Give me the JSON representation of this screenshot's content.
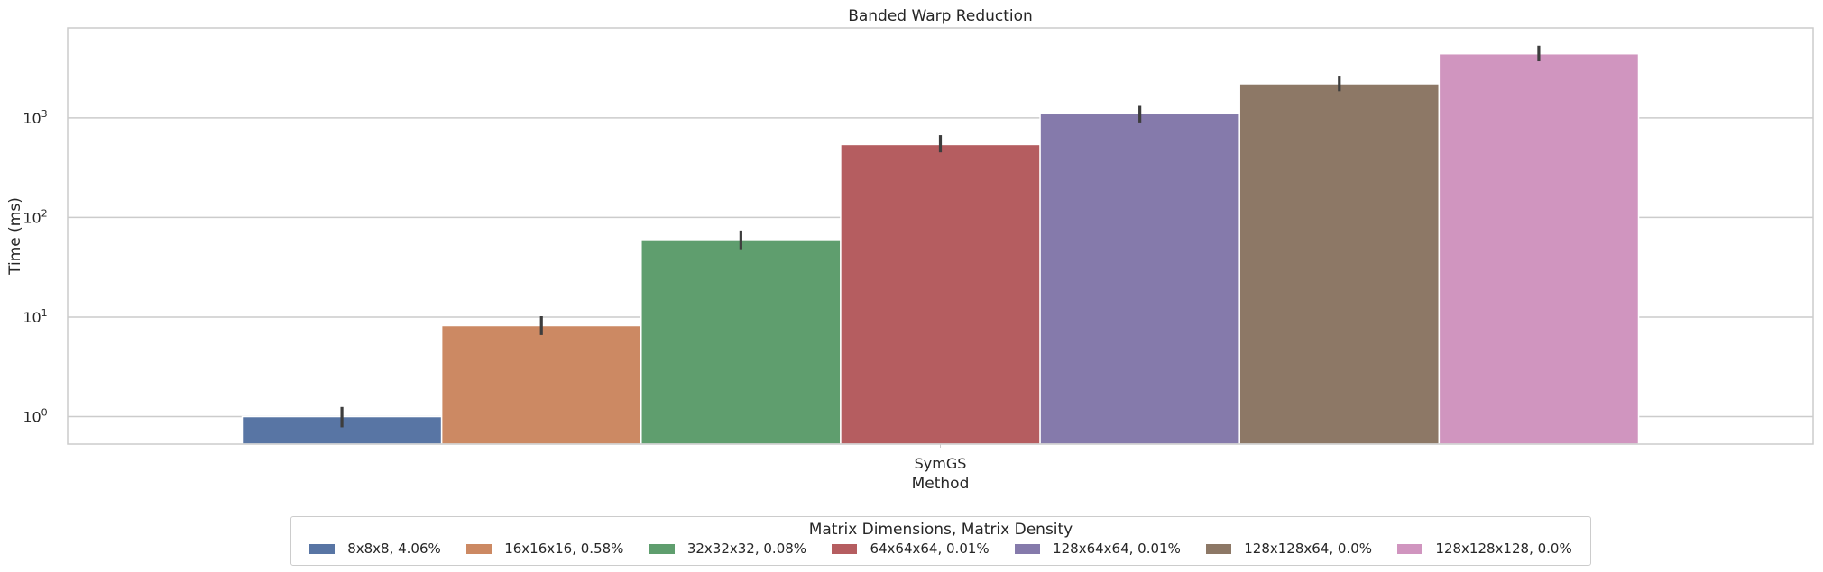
{
  "chart_data": {
    "type": "bar",
    "title": "Banded Warp Reduction",
    "xlabel": "Method",
    "ylabel": "Time (ms)",
    "yscale": "log",
    "ylim": [
      0.53,
      8000
    ],
    "yticks": [
      1,
      10,
      100,
      1000
    ],
    "ytick_labels": [
      "10",
      "10",
      "10",
      "10"
    ],
    "ytick_exponents": [
      "0",
      "1",
      "2",
      "3"
    ],
    "grid": true,
    "categories": [
      "SymGS"
    ],
    "legend_title": "Matrix Dimensions, Matrix Density",
    "legend_position": "bottom-center",
    "series": [
      {
        "name": "8x8x8, 4.06%",
        "color": "#5875a4",
        "values": [
          1.0
        ],
        "err_low": [
          0.78
        ],
        "err_high": [
          1.25
        ]
      },
      {
        "name": "16x16x16, 0.58%",
        "color": "#cc8963",
        "values": [
          8.2
        ],
        "err_low": [
          6.6
        ],
        "err_high": [
          10.2
        ]
      },
      {
        "name": "32x32x32, 0.08%",
        "color": "#5f9e6e",
        "values": [
          60
        ],
        "err_low": [
          48
        ],
        "err_high": [
          74
        ]
      },
      {
        "name": "64x64x64, 0.01%",
        "color": "#b55d60",
        "values": [
          540
        ],
        "err_low": [
          450
        ],
        "err_high": [
          670
        ]
      },
      {
        "name": "128x64x64, 0.01%",
        "color": "#857aab",
        "values": [
          1100
        ],
        "err_low": [
          900
        ],
        "err_high": [
          1320
        ]
      },
      {
        "name": "128x128x64, 0.0%",
        "color": "#8d7866",
        "values": [
          2200
        ],
        "err_low": [
          1850
        ],
        "err_high": [
          2650
        ]
      },
      {
        "name": "128x128x128, 0.0%",
        "color": "#d095bf",
        "values": [
          4400
        ],
        "err_low": [
          3700
        ],
        "err_high": [
          5300
        ]
      }
    ]
  }
}
